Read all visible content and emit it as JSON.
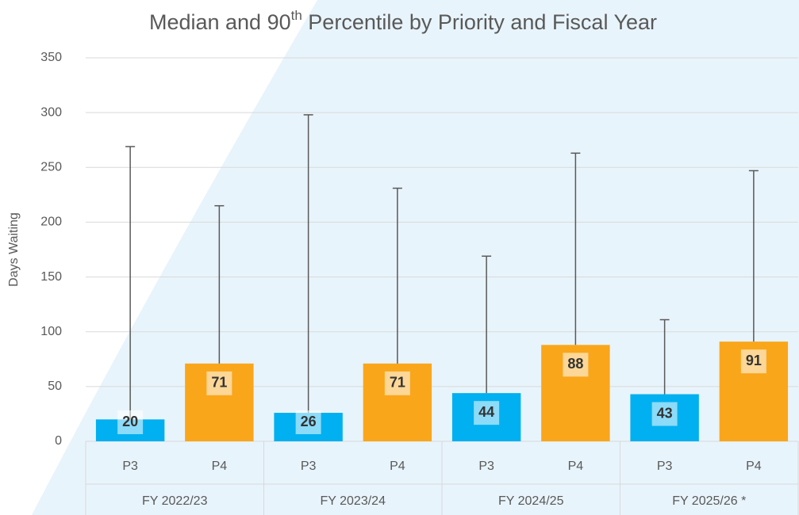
{
  "chart_data": {
    "type": "bar",
    "title": "Median and 90th Percentile by Priority and Fiscal Year",
    "y_label": "Days Waiting",
    "categories": [
      "FY 2022/23",
      "FY 2023/24",
      "FY 2024/25",
      "FY 2025/26 *"
    ],
    "series": [
      {
        "name": "P3",
        "color": "#00b0f0",
        "values": [
          20,
          26,
          44,
          43
        ],
        "percentile_90": [
          269,
          298,
          169,
          111
        ]
      },
      {
        "name": "P4",
        "color": "#faa61a",
        "values": [
          71,
          71,
          88,
          91
        ],
        "percentile_90": [
          215,
          231,
          263,
          247
        ]
      }
    ],
    "ylim": [
      0,
      350
    ],
    "yticks": [
      0,
      50,
      100,
      150,
      200,
      250,
      300,
      350
    ],
    "grid": true
  }
}
